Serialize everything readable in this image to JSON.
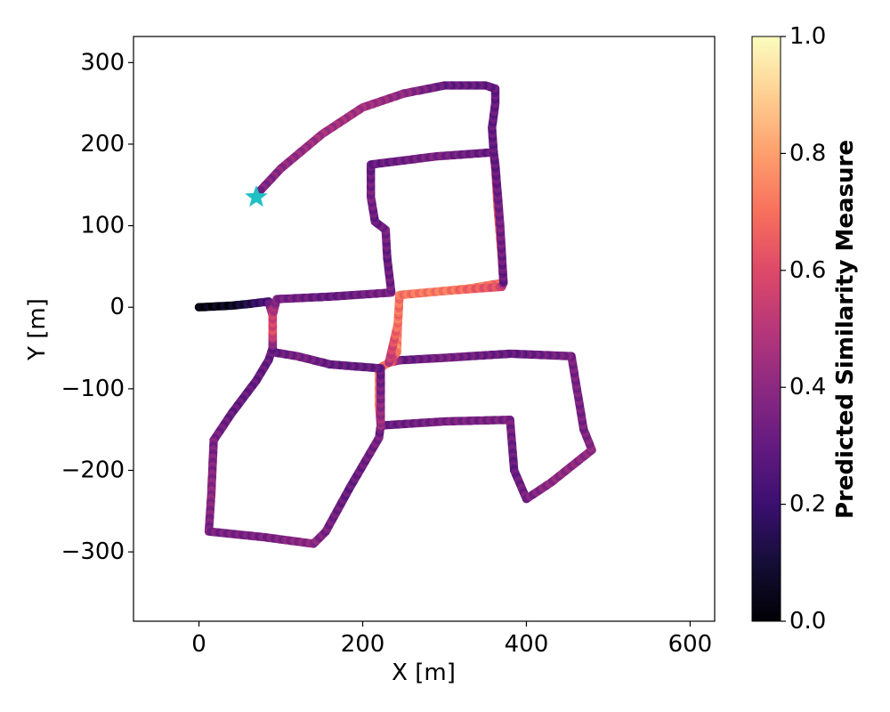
{
  "chart_data": {
    "type": "scatter",
    "title": "",
    "xlabel": "X [m]",
    "ylabel": "Y [m]",
    "xlim": [
      -80,
      630
    ],
    "ylim": [
      -385,
      332
    ],
    "xticks": [
      0,
      200,
      400,
      600
    ],
    "yticks": [
      -300,
      -200,
      -100,
      0,
      100,
      200,
      300
    ],
    "grid": false,
    "colormap": "magma",
    "colorbar": {
      "label": "Predicted Similarity Measure",
      "range": [
        0.0,
        1.0
      ],
      "ticks": [
        "0.0",
        "0.2",
        "0.4",
        "0.6",
        "0.8",
        "1.0"
      ]
    },
    "start_marker": {
      "x": 70,
      "y": 135,
      "color": "#1fbfc4",
      "shape": "star"
    },
    "trajectory": [
      {
        "x": 0,
        "y": 0,
        "v": 0.02
      },
      {
        "x": 40,
        "y": 2,
        "v": 0.05
      },
      {
        "x": 60,
        "y": 4,
        "v": 0.12
      },
      {
        "x": 85,
        "y": 7,
        "v": 0.25
      },
      {
        "x": 90,
        "y": -10,
        "v": 0.5
      },
      {
        "x": 90,
        "y": -30,
        "v": 0.6
      },
      {
        "x": 90,
        "y": -50,
        "v": 0.35
      },
      {
        "x": 85,
        "y": -65,
        "v": 0.3
      },
      {
        "x": 70,
        "y": -90,
        "v": 0.3
      },
      {
        "x": 40,
        "y": -130,
        "v": 0.3
      },
      {
        "x": 18,
        "y": -163,
        "v": 0.35
      },
      {
        "x": 15,
        "y": -230,
        "v": 0.4
      },
      {
        "x": 12,
        "y": -275,
        "v": 0.35
      },
      {
        "x": 80,
        "y": -282,
        "v": 0.35
      },
      {
        "x": 140,
        "y": -290,
        "v": 0.4
      },
      {
        "x": 155,
        "y": -275,
        "v": 0.35
      },
      {
        "x": 185,
        "y": -220,
        "v": 0.3
      },
      {
        "x": 220,
        "y": -160,
        "v": 0.35
      },
      {
        "x": 222,
        "y": -145,
        "v": 0.3
      },
      {
        "x": 300,
        "y": -140,
        "v": 0.35
      },
      {
        "x": 380,
        "y": -138,
        "v": 0.35
      },
      {
        "x": 385,
        "y": -200,
        "v": 0.3
      },
      {
        "x": 400,
        "y": -235,
        "v": 0.35
      },
      {
        "x": 430,
        "y": -215,
        "v": 0.4
      },
      {
        "x": 480,
        "y": -175,
        "v": 0.4
      },
      {
        "x": 470,
        "y": -150,
        "v": 0.35
      },
      {
        "x": 455,
        "y": -60,
        "v": 0.35
      },
      {
        "x": 380,
        "y": -57,
        "v": 0.3
      },
      {
        "x": 300,
        "y": -62,
        "v": 0.35
      },
      {
        "x": 245,
        "y": -65,
        "v": 0.3
      },
      {
        "x": 232,
        "y": -68,
        "v": 0.7
      },
      {
        "x": 220,
        "y": -75,
        "v": 0.7
      },
      {
        "x": 220,
        "y": -120,
        "v": 0.7
      },
      {
        "x": 222,
        "y": -145,
        "v": 0.45
      },
      {
        "x": 222,
        "y": -75,
        "v": 0.3
      },
      {
        "x": 160,
        "y": -70,
        "v": 0.3
      },
      {
        "x": 120,
        "y": -60,
        "v": 0.35
      },
      {
        "x": 90,
        "y": -55,
        "v": 0.3
      },
      {
        "x": 90,
        "y": -50,
        "v": 0.3
      },
      {
        "x": 90,
        "y": -30,
        "v": 0.6
      },
      {
        "x": 90,
        "y": -10,
        "v": 0.55
      },
      {
        "x": 95,
        "y": 10,
        "v": 0.35
      },
      {
        "x": 160,
        "y": 13,
        "v": 0.3
      },
      {
        "x": 235,
        "y": 18,
        "v": 0.35
      },
      {
        "x": 230,
        "y": 60,
        "v": 0.3
      },
      {
        "x": 228,
        "y": 95,
        "v": 0.35
      },
      {
        "x": 215,
        "y": 105,
        "v": 0.3
      },
      {
        "x": 210,
        "y": 135,
        "v": 0.35
      },
      {
        "x": 210,
        "y": 175,
        "v": 0.3
      },
      {
        "x": 290,
        "y": 185,
        "v": 0.35
      },
      {
        "x": 360,
        "y": 190,
        "v": 0.3
      },
      {
        "x": 362,
        "y": 170,
        "v": 0.6
      },
      {
        "x": 365,
        "y": 120,
        "v": 0.65
      },
      {
        "x": 370,
        "y": 60,
        "v": 0.7
      },
      {
        "x": 372,
        "y": 30,
        "v": 0.65
      },
      {
        "x": 330,
        "y": 23,
        "v": 0.75
      },
      {
        "x": 300,
        "y": 20,
        "v": 0.72
      },
      {
        "x": 245,
        "y": 15,
        "v": 0.75
      },
      {
        "x": 243,
        "y": -20,
        "v": 0.7
      },
      {
        "x": 242,
        "y": -55,
        "v": 0.75
      },
      {
        "x": 232,
        "y": -68,
        "v": 0.5
      },
      {
        "x": 243,
        "y": -20,
        "v": 0.7
      },
      {
        "x": 245,
        "y": 15,
        "v": 0.7
      },
      {
        "x": 300,
        "y": 20,
        "v": 0.72
      },
      {
        "x": 370,
        "y": 25,
        "v": 0.6
      },
      {
        "x": 372,
        "y": 30,
        "v": 0.3
      },
      {
        "x": 368,
        "y": 100,
        "v": 0.35
      },
      {
        "x": 362,
        "y": 175,
        "v": 0.3
      },
      {
        "x": 360,
        "y": 190,
        "v": 0.3
      },
      {
        "x": 358,
        "y": 220,
        "v": 0.3
      },
      {
        "x": 362,
        "y": 250,
        "v": 0.3
      },
      {
        "x": 362,
        "y": 268,
        "v": 0.3
      },
      {
        "x": 350,
        "y": 272,
        "v": 0.3
      },
      {
        "x": 300,
        "y": 272,
        "v": 0.3
      },
      {
        "x": 250,
        "y": 262,
        "v": 0.4
      },
      {
        "x": 200,
        "y": 245,
        "v": 0.45
      },
      {
        "x": 150,
        "y": 212,
        "v": 0.45
      },
      {
        "x": 100,
        "y": 170,
        "v": 0.4
      },
      {
        "x": 72,
        "y": 140,
        "v": 0.35
      }
    ]
  }
}
